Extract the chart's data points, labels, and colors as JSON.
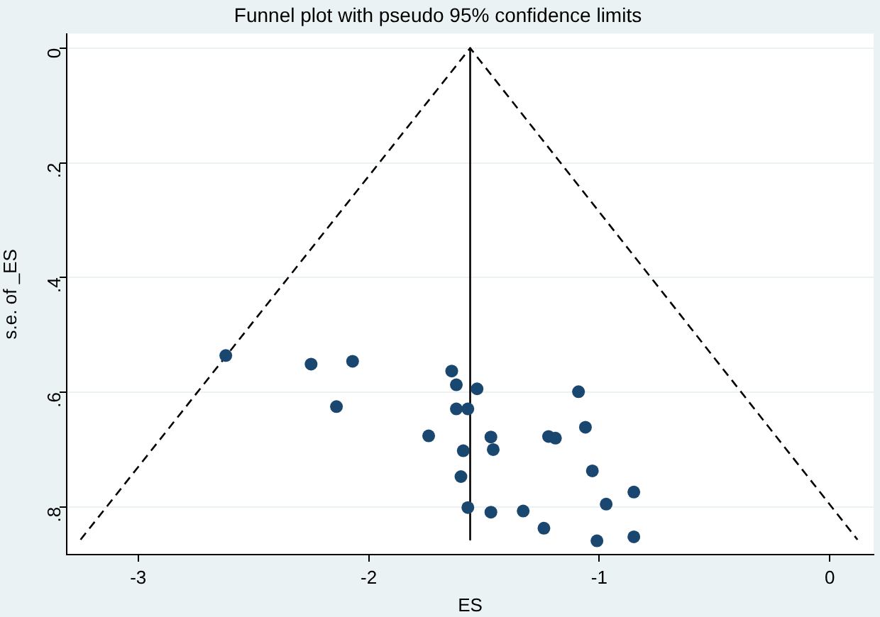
{
  "chart_data": {
    "type": "scatter",
    "title": "Funnel plot with pseudo 95% confidence limits",
    "xlabel": "ES",
    "ylabel": "s.e. of _ES",
    "xlim": [
      -3.31,
      0.19
    ],
    "xticks": [
      -3,
      -2,
      -1,
      0
    ],
    "ylim": [
      0.883,
      -0.025
    ],
    "yticks": [
      {
        "value": 0,
        "label": "0"
      },
      {
        "value": 0.2,
        "label": ".2"
      },
      {
        "value": 0.4,
        "label": ".4"
      },
      {
        "value": 0.6,
        "label": ".6"
      },
      {
        "value": 0.8,
        "label": ".8"
      }
    ],
    "grid": "y",
    "legend": false,
    "marker": "circle",
    "series": [
      {
        "type": "line",
        "color": "#000000",
        "line_style": "dashed",
        "marker": "none",
        "x": [
          -3.25,
          -1.56,
          0.12
        ],
        "values": [
          0.857,
          0,
          0.857
        ]
      },
      {
        "type": "line",
        "color": "#000000",
        "line_style": "solid",
        "marker": "none",
        "x": [
          -1.56,
          -1.56
        ],
        "values": [
          0,
          0.857
        ]
      },
      {
        "color": "#1a476f",
        "x": [
          -2.62,
          -2.25,
          -2.07,
          -2.14,
          -1.64,
          -1.62,
          -1.53,
          -1.62,
          -1.57,
          -1.74,
          -1.47,
          -1.59,
          -1.46,
          -1.6,
          -1.57,
          -1.47,
          -1.33,
          -1.24,
          -1.22,
          -1.19,
          -1.09,
          -1.06,
          -1.03,
          -0.97,
          -0.85,
          -1.01,
          -0.85
        ],
        "values": [
          0.536,
          0.551,
          0.546,
          0.625,
          0.563,
          0.587,
          0.594,
          0.629,
          0.629,
          0.676,
          0.678,
          0.702,
          0.7,
          0.747,
          0.801,
          0.809,
          0.807,
          0.837,
          0.677,
          0.68,
          0.599,
          0.661,
          0.737,
          0.795,
          0.774,
          0.859,
          0.852
        ]
      }
    ]
  }
}
